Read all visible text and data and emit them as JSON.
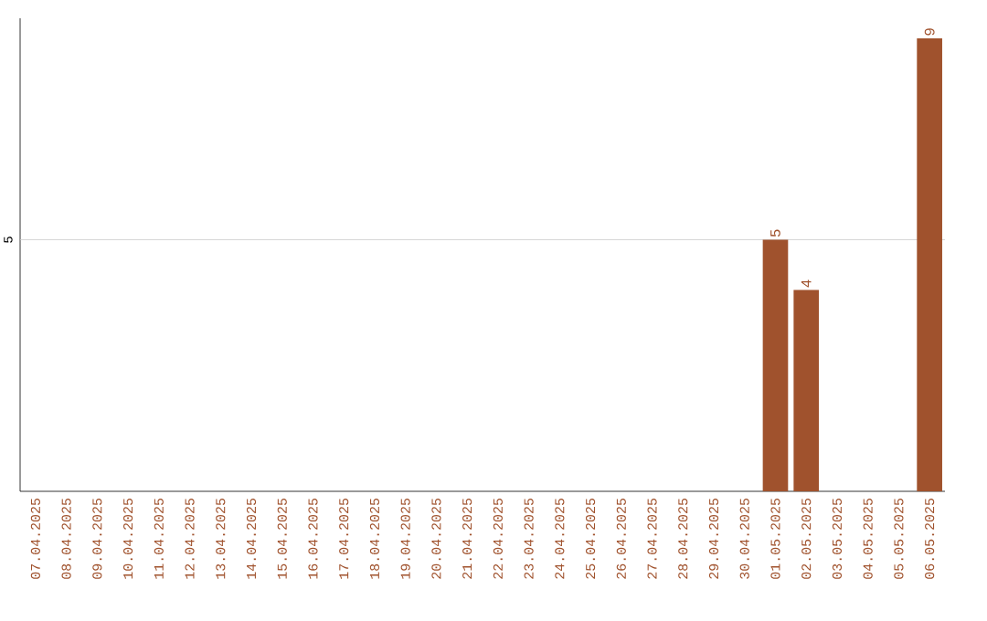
{
  "chart_data": {
    "type": "bar",
    "ylim": [
      0,
      9.4
    ],
    "categories": [
      "07.04.2025",
      "08.04.2025",
      "09.04.2025",
      "10.04.2025",
      "11.04.2025",
      "12.04.2025",
      "13.04.2025",
      "14.04.2025",
      "15.04.2025",
      "16.04.2025",
      "17.04.2025",
      "18.04.2025",
      "19.04.2025",
      "20.04.2025",
      "21.04.2025",
      "22.04.2025",
      "23.04.2025",
      "24.04.2025",
      "25.04.2025",
      "26.04.2025",
      "27.04.2025",
      "28.04.2025",
      "29.04.2025",
      "30.04.2025",
      "01.05.2025",
      "02.05.2025",
      "03.05.2025",
      "04.05.2025",
      "05.05.2025",
      "06.05.2025"
    ],
    "values": [
      null,
      null,
      null,
      null,
      null,
      null,
      null,
      null,
      null,
      null,
      null,
      null,
      null,
      null,
      null,
      null,
      null,
      null,
      null,
      null,
      null,
      null,
      null,
      null,
      5,
      4,
      null,
      null,
      null,
      9
    ],
    "data_labels": true,
    "color": "#a0522d",
    "ref_lines": [
      {
        "axis": "y",
        "value": 5,
        "label": "5",
        "color": "#cccccc"
      }
    ]
  }
}
